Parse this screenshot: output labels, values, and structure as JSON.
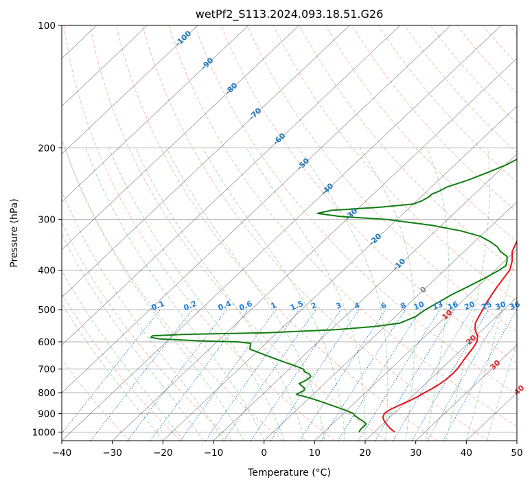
{
  "chart_data": {
    "type": "line",
    "title": "wetPf2_S113.2024.093.18.51.G26",
    "xlabel": "Temperature (°C)",
    "ylabel": "Pressure (hPa)",
    "xlim": [
      -40,
      50
    ],
    "ylim": [
      1050,
      100
    ],
    "y_scale": "log",
    "x_ticks": [
      -40,
      -30,
      -20,
      -10,
      0,
      10,
      20,
      30,
      40,
      50
    ],
    "y_ticks": [
      100,
      200,
      300,
      400,
      500,
      600,
      700,
      800,
      900,
      1000
    ],
    "grid": true,
    "skew_isotherms": [
      -100,
      -90,
      -80,
      -70,
      -60,
      -50,
      -40,
      -30,
      -20,
      -10,
      0,
      10,
      20,
      30,
      40
    ],
    "mixing_ratio_labels": [
      0.1,
      0.2,
      0.4,
      0.6,
      1,
      1.5,
      2,
      3,
      4,
      6,
      8,
      10,
      13,
      16,
      20,
      25,
      30,
      36
    ],
    "colors": {
      "temperature": "#e8111a",
      "dewpoint": "#0f7d10",
      "isotherm": "#555555",
      "dry_adiabat": "#f2a184",
      "moist_adiabat": "#98cf98",
      "mixing_ratio": "#1f7fd6",
      "isotherm_label_cold": "#1f77b4",
      "isotherm_label_warm": "#d62728",
      "isotherm_label_zero": "#808080"
    },
    "series": [
      {
        "key": "temperature",
        "p": [
          1000,
          980,
          960,
          940,
          920,
          900,
          880,
          860,
          840,
          820,
          800,
          780,
          760,
          740,
          720,
          700,
          680,
          660,
          640,
          620,
          600,
          580,
          560,
          540,
          520,
          500,
          480,
          460,
          440,
          420,
          400,
          380,
          360,
          340,
          320,
          300,
          280,
          260,
          240,
          220,
          200,
          185,
          170,
          160,
          150,
          140,
          130,
          120,
          110,
          100
        ],
        "t": [
          24.0,
          22.4,
          21.0,
          19.7,
          18.6,
          18.1,
          18.4,
          19.3,
          20.3,
          21.1,
          21.7,
          22.4,
          22.9,
          23.2,
          23.3,
          23.2,
          22.9,
          22.5,
          22.2,
          21.9,
          21.4,
          20.3,
          18.5,
          17.2,
          16.5,
          15.8,
          15.1,
          14.5,
          13.9,
          13.4,
          12.9,
          11.5,
          9.5,
          8.3,
          7.6,
          6.5,
          4.9,
          3.1,
          1.3,
          -0.4,
          -2.0,
          -3.0,
          -3.3,
          -3.0,
          -2.6,
          -2.7,
          -2.1,
          -1.2,
          0.2,
          1.9
        ]
      },
      {
        "key": "dewpoint",
        "p": [
          1000,
          985,
          970,
          955,
          940,
          925,
          910,
          900,
          885,
          870,
          855,
          840,
          825,
          815,
          808,
          800,
          790,
          780,
          770,
          760,
          750,
          740,
          730,
          720,
          710,
          700,
          690,
          680,
          670,
          660,
          650,
          640,
          630,
          625,
          615,
          605,
          600,
          597,
          590,
          585,
          580,
          575,
          570,
          560,
          550,
          540,
          520,
          500,
          480,
          460,
          440,
          420,
          400,
          390,
          380,
          370,
          360,
          350,
          340,
          330,
          320,
          310,
          300,
          295,
          290,
          285,
          280,
          275,
          270,
          265,
          260,
          255,
          250,
          240,
          230,
          220,
          210,
          200,
          190,
          180,
          170,
          160,
          150,
          140,
          130,
          120,
          110,
          100
        ],
        "td": [
          17.0,
          16.7,
          16.7,
          16.7,
          15.5,
          14.0,
          12.6,
          12.0,
          9.9,
          7.6,
          5.2,
          2.8,
          0.2,
          -1.8,
          -3.3,
          -3.0,
          -2.6,
          -3.0,
          -4.0,
          -5.0,
          -4.5,
          -4.2,
          -4.2,
          -5.0,
          -6.5,
          -7.2,
          -9.0,
          -11.0,
          -13.0,
          -15.0,
          -17.0,
          -19.0,
          -21.0,
          -22.0,
          -22.5,
          -23.0,
          -26.0,
          -33.0,
          -42.0,
          -44.0,
          -44.0,
          -38.0,
          -22.0,
          -9.0,
          -2.0,
          2.2,
          4.0,
          4.5,
          5.5,
          6.5,
          8.0,
          9.5,
          10.8,
          11.2,
          10.5,
          9.5,
          7.2,
          5.5,
          3.0,
          0.0,
          -5.0,
          -12.0,
          -22.0,
          -32.0,
          -37.0,
          -35.0,
          -26.0,
          -20.0,
          -19.0,
          -18.5,
          -18.4,
          -17.5,
          -17.0,
          -14.2,
          -11.9,
          -9.8,
          -8.4,
          -7.3,
          -6.9,
          -6.4,
          -5.4,
          -5.2,
          -5.2,
          -4.9,
          -4.0,
          -2.8,
          -1.5,
          -0.8
        ]
      }
    ]
  }
}
